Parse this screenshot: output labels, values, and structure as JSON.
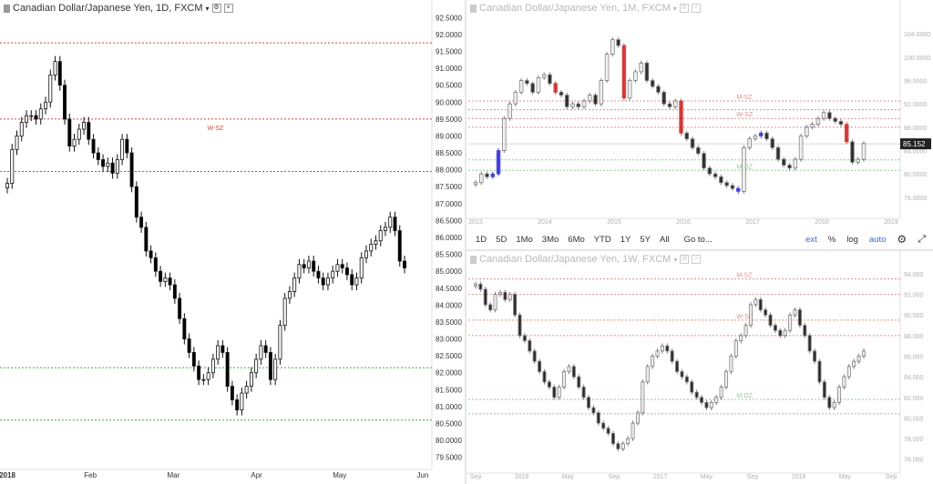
{
  "colors": {
    "zone_red": "#c0392b",
    "zone_green": "#3a9a3a",
    "bull": "#ffffff",
    "bear": "#000000",
    "mark_red": "#cc1111",
    "mark_blue": "#1a1acc"
  },
  "charts": [
    {
      "id": "daily",
      "title": "Canadian Dollar/Japanese Yen, 1D, FXCM",
      "faded": false,
      "price_axis": [
        "92.5000",
        "92.0000",
        "91.5000",
        "91.0000",
        "90.5000",
        "90.0000",
        "89.5000",
        "89.0000",
        "88.5000",
        "88.0000",
        "87.5000",
        "87.0000",
        "86.5000",
        "86.0000",
        "85.5000",
        "85.0000",
        "84.5000",
        "84.0000",
        "83.5000",
        "83.0000",
        "82.5000",
        "82.0000",
        "81.5000",
        "81.0000",
        "80.5000",
        "80.0000",
        "79.5000"
      ],
      "time_axis": [
        "2018",
        "Feb",
        "Mar",
        "Apr",
        "May",
        "Jun"
      ],
      "zones": [
        {
          "label": "",
          "value": 91.75,
          "color": "red"
        },
        {
          "label": "W-SZ",
          "value": 89.5,
          "color": "red"
        },
        {
          "label": "",
          "value": 87.95,
          "color": "red"
        },
        {
          "label": "",
          "value": 82.15,
          "color": "green"
        },
        {
          "label": "",
          "value": 80.6,
          "color": "green"
        }
      ],
      "ylim": [
        79.25,
        92.75
      ],
      "chart_data": {
        "type": "candlestick",
        "x_labels": [
          "2018",
          "Feb",
          "Mar",
          "Apr",
          "May",
          "Jun"
        ],
        "ylim": [
          79.25,
          92.75
        ],
        "series": [
          {
            "values": [
              87.6,
              88.6,
              89.0,
              89.4,
              89.6,
              89.6,
              89.5,
              89.8,
              90.0,
              90.8,
              91.2,
              90.5,
              89.5,
              88.7,
              88.9,
              89.2,
              89.4,
              88.9,
              88.5,
              88.3,
              88.1,
              88.2,
              87.9,
              88.3,
              88.9,
              88.5,
              87.5,
              86.6,
              86.3,
              85.6,
              85.4,
              85.0,
              84.7,
              84.8,
              84.6,
              84.2,
              83.6,
              83.0,
              82.6,
              82.2,
              81.8,
              81.8,
              82.0,
              82.4,
              82.8,
              82.6,
              81.6,
              81.2,
              80.9,
              81.4,
              81.6,
              82.0,
              82.4,
              82.8,
              82.6,
              81.8,
              82.4,
              83.4,
              84.2,
              84.4,
              84.8,
              85.2,
              85.1,
              85.3,
              85.0,
              84.8,
              84.6,
              84.8,
              85.0,
              85.2,
              85.1,
              84.9,
              84.6,
              84.8,
              85.4,
              85.6,
              85.8,
              85.9,
              86.2,
              86.3,
              86.6,
              86.2,
              85.3,
              85.1
            ]
          }
        ]
      }
    },
    {
      "id": "monthly",
      "title": "Canadian Dollar/Japanese Yen, 1M, FXCM",
      "faded": true,
      "price_axis": [
        "104.0000",
        "100.0000",
        "96.0000",
        "92.0000",
        "88.0000",
        "84.0000",
        "80.0000",
        "76.0000"
      ],
      "time_axis": [
        "2013",
        "2014",
        "2015",
        "2016",
        "2017",
        "2018",
        "2019"
      ],
      "current_price": "85.152",
      "zones": [
        {
          "label": "M-SZ",
          "value": 92.5,
          "color": "red"
        },
        {
          "label": "",
          "value": 91.0,
          "color": "red"
        },
        {
          "label": "W-SZ",
          "value": 89.5,
          "color": "red"
        },
        {
          "label": "",
          "value": 88.0,
          "color": "red"
        },
        {
          "label": "",
          "value": 82.4,
          "color": "green"
        },
        {
          "label": "M-DZ",
          "value": 80.6,
          "color": "green"
        }
      ],
      "ylim": [
        73.0,
        107.0
      ],
      "chart_data": {
        "type": "candlestick",
        "x_labels": [
          "2013",
          "2014",
          "2015",
          "2016",
          "2017",
          "2018",
          "2019"
        ],
        "ylim": [
          73.0,
          107.0
        ],
        "series": [
          {
            "values": [
              78.5,
              80.0,
              79.5,
              80.0,
              84.0,
              89.5,
              92.0,
              94.0,
              96.0,
              95.5,
              94.0,
              96.5,
              97.0,
              95.5,
              94.0,
              93.5,
              91.5,
              92.0,
              91.5,
              92.5,
              93.5,
              92.0,
              96.0,
              100.5,
              103.0,
              102.0,
              93.0,
              96.0,
              97.5,
              99.0,
              96.0,
              95.0,
              94.0,
              92.0,
              91.5,
              92.5,
              87.0,
              86.0,
              84.5,
              83.5,
              81.0,
              80.0,
              79.5,
              78.5,
              78.0,
              77.5,
              77.0,
              84.5,
              86.0,
              86.5,
              87.0,
              86.0,
              84.5,
              82.5,
              81.5,
              81.0,
              82.5,
              86.5,
              88.0,
              88.5,
              89.5,
              90.5,
              89.5,
              89.0,
              88.5,
              85.5,
              82.0,
              82.5,
              85.2
            ]
          }
        ]
      }
    },
    {
      "id": "weekly",
      "title": "Canadian Dollar/Japanese Yen, 1W, FXCM",
      "faded": true,
      "price_axis": [
        "94.000",
        "92.000",
        "90.000",
        "88.000",
        "86.000",
        "84.000",
        "82.000",
        "80.000",
        "78.000",
        "76.000"
      ],
      "time_axis": [
        "Sep",
        "2016",
        "May",
        "Sep",
        "2017",
        "May",
        "Sep",
        "2018",
        "May",
        "Sep"
      ],
      "zones": [
        {
          "label": "M-SZ",
          "value": 93.5,
          "color": "red"
        },
        {
          "label": "",
          "value": 92.0,
          "color": "red"
        },
        {
          "label": "W-SZ",
          "value": 89.5,
          "color": "red"
        },
        {
          "label": "",
          "value": 88.0,
          "color": "red"
        },
        {
          "label": "M-DZ",
          "value": 81.8,
          "color": "green"
        },
        {
          "label": "",
          "value": 80.4,
          "color": "green"
        }
      ],
      "ylim": [
        75.0,
        95.5
      ],
      "chart_data": {
        "type": "candlestick",
        "x_labels": [
          "Sep",
          "2016",
          "May",
          "Sep",
          "2017",
          "May",
          "Sep",
          "2018",
          "May",
          "Sep"
        ],
        "ylim": [
          75.0,
          95.5
        ],
        "series": [
          {
            "values": [
              93.0,
              92.5,
              91.0,
              90.5,
              92.0,
              92.2,
              91.5,
              92.0,
              90.0,
              88.0,
              87.5,
              86.5,
              85.5,
              84.5,
              83.5,
              83.0,
              82.0,
              83.0,
              84.5,
              85.0,
              84.0,
              83.0,
              82.0,
              81.0,
              80.5,
              79.5,
              79.0,
              78.5,
              77.5,
              77.0,
              77.5,
              78.0,
              79.5,
              80.5,
              83.5,
              85.0,
              86.0,
              86.5,
              87.0,
              86.5,
              85.5,
              84.5,
              84.0,
              83.5,
              82.5,
              82.0,
              81.5,
              81.0,
              81.5,
              82.0,
              83.0,
              84.5,
              86.0,
              87.5,
              88.0,
              89.0,
              91.0,
              91.5,
              90.5,
              90.0,
              89.0,
              88.5,
              88.0,
              88.5,
              90.0,
              90.5,
              89.0,
              88.0,
              86.5,
              85.5,
              83.5,
              82.0,
              81.0,
              81.5,
              83.0,
              84.0,
              85.0,
              85.5,
              86.0,
              86.5
            ]
          }
        ]
      }
    }
  ],
  "toolbar": {
    "ranges": [
      "1D",
      "5D",
      "1Mo",
      "3Mo",
      "6Mo",
      "YTD",
      "1Y",
      "5Y",
      "All"
    ],
    "goto": "Go to...",
    "right": [
      {
        "label": "ext",
        "blue": true
      },
      {
        "label": "%",
        "blue": false
      },
      {
        "label": "log",
        "blue": false
      },
      {
        "label": "auto",
        "blue": true
      }
    ]
  }
}
